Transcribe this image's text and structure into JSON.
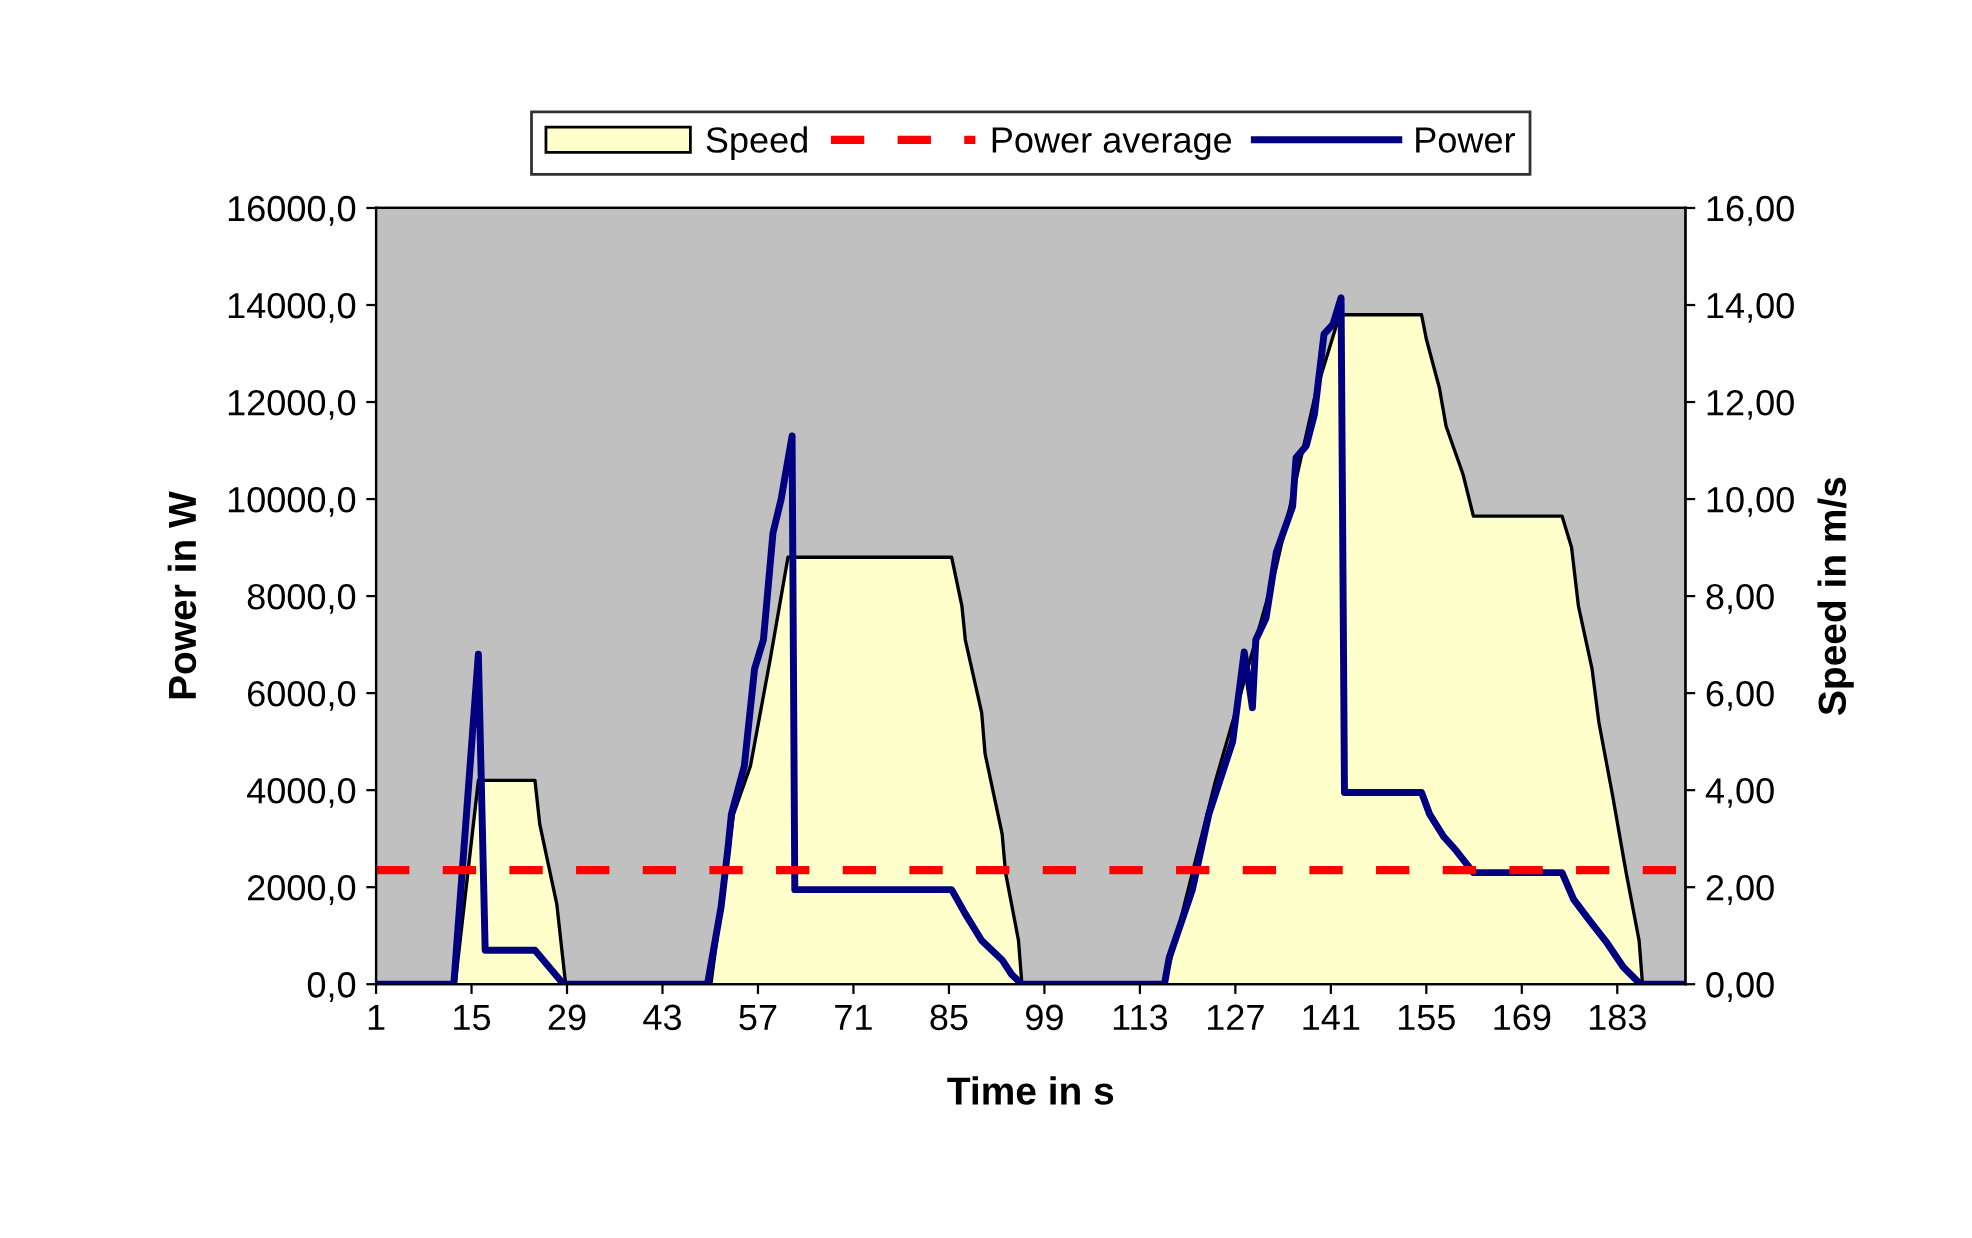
{
  "chart_data": {
    "type": "line",
    "xlabel": "Time in s",
    "ylabel": "Power in W",
    "y2label": "Speed in m/s",
    "xlim": [
      1,
      193
    ],
    "xticks": [
      1,
      15,
      29,
      43,
      57,
      71,
      85,
      99,
      113,
      127,
      141,
      155,
      169,
      183
    ],
    "ylim": [
      0,
      16000
    ],
    "yticks": [
      {
        "value": 0,
        "label": "0,0"
      },
      {
        "value": 2000,
        "label": "2000,0"
      },
      {
        "value": 4000,
        "label": "4000,0"
      },
      {
        "value": 6000,
        "label": "6000,0"
      },
      {
        "value": 8000,
        "label": "8000,0"
      },
      {
        "value": 10000,
        "label": "10000,0"
      },
      {
        "value": 12000,
        "label": "12000,0"
      },
      {
        "value": 14000,
        "label": "14000,0"
      },
      {
        "value": 16000,
        "label": "16000,0"
      }
    ],
    "y2lim": [
      0,
      16
    ],
    "y2ticks": [
      {
        "value": 0,
        "label": "0,00"
      },
      {
        "value": 2,
        "label": "2,00"
      },
      {
        "value": 4,
        "label": "4,00"
      },
      {
        "value": 6,
        "label": "6,00"
      },
      {
        "value": 8,
        "label": "8,00"
      },
      {
        "value": 10,
        "label": "10,00"
      },
      {
        "value": 12,
        "label": "12,00"
      },
      {
        "value": 14,
        "label": "14,00"
      },
      {
        "value": 16,
        "label": "16,00"
      }
    ],
    "series": [
      {
        "name": "Speed",
        "type": "area",
        "axis": "y2",
        "color": "#ffffcc",
        "x": [
          1,
          12.6,
          16,
          24.3,
          25,
          27.5,
          28.8,
          50.1,
          53.4,
          55.9,
          58.8,
          61.4,
          85.4,
          86.9,
          87.4,
          89.8,
          90.3,
          92.8,
          93.3,
          95.2,
          95.7,
          116.6,
          124.1,
          127,
          133,
          138.8,
          142.3,
          154.3,
          155,
          156.9,
          157.9,
          160.4,
          161.9,
          174.9,
          176.3,
          177.3,
          179.3,
          180.3,
          182.3,
          184.3,
          186.2,
          186.7,
          193
        ],
        "values": [
          0,
          0,
          4.2,
          4.2,
          3.3,
          1.65,
          0,
          0,
          3.5,
          4.5,
          6.7,
          8.8,
          8.8,
          7.8,
          7.1,
          5.6,
          4.75,
          3.1,
          2.3,
          0.9,
          0,
          0,
          4.2,
          5.6,
          8.6,
          12.2,
          13.8,
          13.8,
          13.3,
          12.3,
          11.5,
          10.5,
          9.65,
          9.65,
          9.0,
          7.8,
          6.5,
          5.4,
          3.9,
          2.3,
          0.9,
          0,
          0
        ]
      },
      {
        "name": "Power",
        "axis": "y",
        "color": "#000080",
        "x": [
          1,
          12.4,
          16,
          17,
          24.3,
          28.5,
          49.6,
          51.6,
          52.6,
          53.1,
          55,
          56.5,
          57.8,
          59.2,
          60.4,
          62,
          62.4,
          85.4,
          87.4,
          89.8,
          92.8,
          94.2,
          95.7,
          116.6,
          117.3,
          120.7,
          123.1,
          126.6,
          128.3,
          129.5,
          130,
          131.5,
          133,
          135.4,
          135.9,
          137.4,
          138.6,
          140,
          141.3,
          142.5,
          143,
          154.3,
          155.5,
          157.5,
          159.4,
          161.9,
          174.9,
          176.6,
          179,
          181.5,
          183.9,
          186.4,
          193
        ],
        "values": [
          0,
          0,
          6800,
          700,
          700,
          0,
          0,
          1600,
          2800,
          3500,
          4500,
          6500,
          7100,
          9300,
          10000,
          11300,
          1950,
          1950,
          1450,
          900,
          500,
          200,
          0,
          0,
          550,
          1950,
          3500,
          5000,
          6850,
          5700,
          7100,
          7550,
          8900,
          9850,
          10850,
          11100,
          11750,
          13400,
          13600,
          14150,
          3950,
          3950,
          3500,
          3050,
          2750,
          2300,
          2300,
          1750,
          1300,
          850,
          350,
          0,
          0
        ]
      }
    ],
    "ref_lines": [
      {
        "axis": "y",
        "value": 2350,
        "label": "Power average",
        "color": "#ff0000",
        "line_style": "dashed"
      }
    ],
    "legend": "top",
    "grid": false
  }
}
